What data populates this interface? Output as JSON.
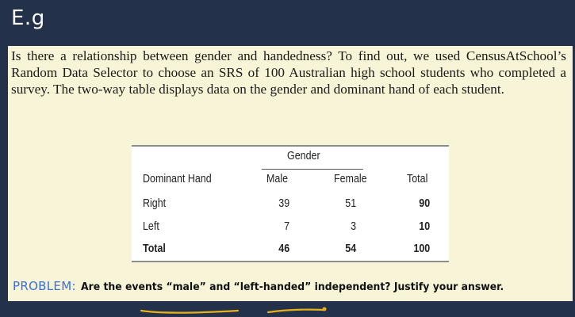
{
  "slide": {
    "title": "E.g"
  },
  "question": {
    "text": "Is there a relationship between gender and handedness? To find out, we used CensusAtSchool’s Random Data Selector to choose an SRS of 100 Australian high school students who completed a survey. The two-way table displays data on the gender and dominant hand of each student."
  },
  "table": {
    "group_header": "Gender",
    "columns": [
      "Dominant Hand",
      "Male",
      "Female",
      "Total"
    ],
    "rows": [
      [
        "Right",
        "39",
        "51",
        "90"
      ],
      [
        "Left",
        "7",
        "3",
        "10"
      ],
      [
        "Total",
        "46",
        "54",
        "100"
      ]
    ]
  },
  "problem": {
    "label": "PROBLEM:",
    "text": "Are the events “male” and “left-handed” independent? Justify your answer."
  },
  "colors": {
    "background": "#23324a",
    "panel": "#f7f4d8",
    "problem_label": "#3a6fd8",
    "annotation": "#e6b01a"
  }
}
